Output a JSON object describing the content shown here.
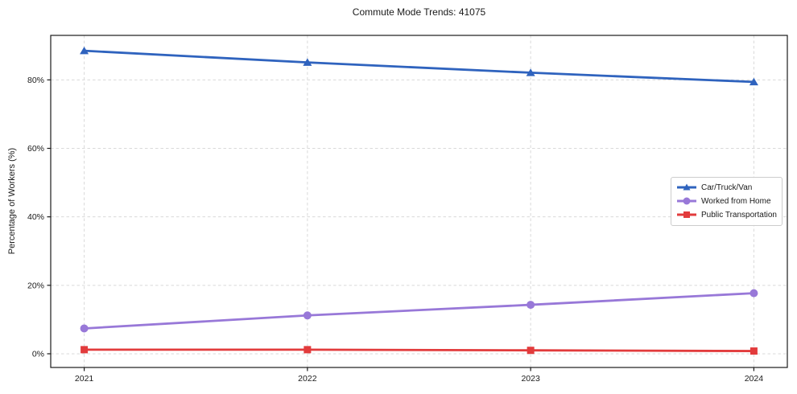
{
  "chart_data": {
    "type": "line",
    "title": "Commute Mode Trends: 41075",
    "xlabel": "",
    "ylabel": "Percentage of Workers (%)",
    "x": [
      2021,
      2022,
      2023,
      2024
    ],
    "x_tick_labels": [
      "2021",
      "2022",
      "2023",
      "2024"
    ],
    "y_ticks": [
      0,
      20,
      40,
      60,
      80
    ],
    "y_tick_labels": [
      "0%",
      "20%",
      "40%",
      "60%",
      "80%"
    ],
    "xlim": [
      2020.85,
      2024.15
    ],
    "ylim": [
      -4,
      93
    ],
    "grid": true,
    "grid_line_style": "dashed",
    "legend_position": "center-right",
    "series": [
      {
        "name": "Car/Truck/Van",
        "marker": "triangle",
        "color": "#2f63be",
        "values": [
          88.5,
          85.1,
          82.1,
          79.4
        ]
      },
      {
        "name": "Worked from Home",
        "marker": "circle",
        "color": "#9878d8",
        "values": [
          7.4,
          11.2,
          14.3,
          17.7
        ]
      },
      {
        "name": "Public Transportation",
        "marker": "square",
        "color": "#e23b3c",
        "values": [
          1.2,
          1.2,
          1.0,
          0.8
        ]
      }
    ],
    "colors": {
      "background": "#ffffff",
      "grid": "#d9d9d9",
      "spine": "#1a1a1a",
      "tick_text": "#1a1a1a"
    }
  }
}
